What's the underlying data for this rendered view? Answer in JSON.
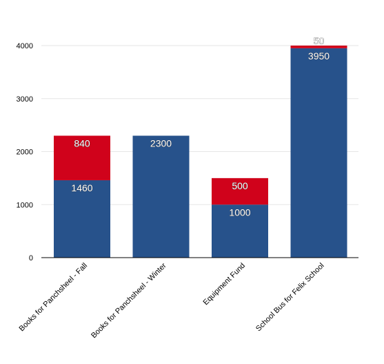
{
  "chart_data": {
    "type": "bar",
    "stacked": true,
    "categories": [
      "Books for Panchsheel - Fall",
      "Books for Panchsheel - Winter",
      "Equipment Fund",
      "School Bus for Felix School"
    ],
    "series": [
      {
        "color": "#27528b",
        "values": [
          1460,
          2300,
          1000,
          3950
        ]
      },
      {
        "color": "#d0021b",
        "values": [
          840,
          0,
          500,
          50
        ]
      }
    ],
    "ylim": [
      0,
      4000
    ],
    "yticks": [
      "0",
      "1000",
      "2000",
      "3000",
      "4000"
    ],
    "grid": true,
    "legend": "none",
    "data_labels": true
  }
}
